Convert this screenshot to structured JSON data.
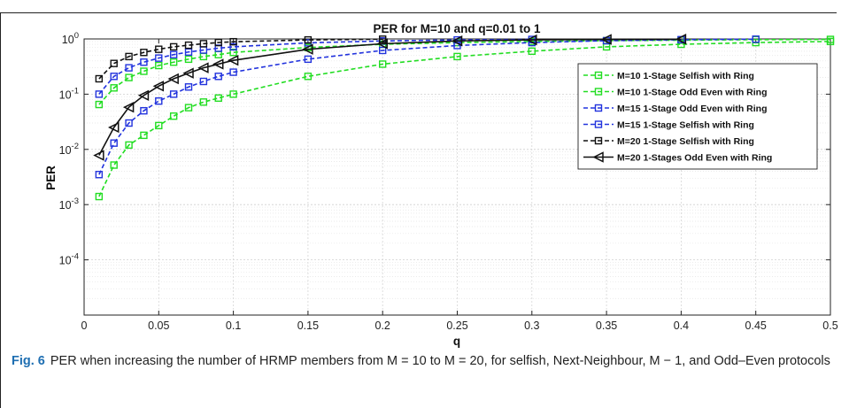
{
  "caption": {
    "label": "Fig. 6",
    "text": "PER when increasing the number of HRMP members from M = 10 to M = 20, for selfish, Next-Neighbour, M − 1, and Odd–Even protocols"
  },
  "chart_data": {
    "type": "line",
    "title": "PER  for M=10 and q=0.01 to 1",
    "xlabel": "q",
    "ylabel": "PER",
    "xlim": [
      0,
      0.5
    ],
    "ylim": [
      1e-05,
      1
    ],
    "yscale": "log",
    "grid": true,
    "legend_position": "right",
    "x_ticks": [
      "0",
      "0.05",
      "0.1",
      "0.15",
      "0.2",
      "0.25",
      "0.3",
      "0.35",
      "0.4",
      "0.45",
      "0.5"
    ],
    "y_ticks": [
      {
        "base": "10",
        "exp": "0"
      },
      {
        "base": "10",
        "exp": "-1"
      },
      {
        "base": "10",
        "exp": "-2"
      },
      {
        "base": "10",
        "exp": "-3"
      },
      {
        "base": "10",
        "exp": "-4"
      }
    ],
    "series": [
      {
        "name": "M=10 1-Stage Selfish with Ring",
        "color": "#22dd22",
        "dash": true,
        "marker": "square",
        "x": [
          0.01,
          0.02,
          0.03,
          0.04,
          0.05,
          0.06,
          0.07,
          0.08,
          0.09,
          0.1,
          0.15,
          0.2,
          0.25,
          0.3,
          0.35,
          0.4,
          0.45,
          0.5
        ],
        "y": [
          0.065,
          0.13,
          0.2,
          0.26,
          0.33,
          0.38,
          0.43,
          0.48,
          0.52,
          0.57,
          0.7,
          0.8,
          0.86,
          0.9,
          0.93,
          0.95,
          0.97,
          0.98
        ]
      },
      {
        "name": "M=10 1-Stage Odd Even with Ring",
        "color": "#22dd22",
        "dash": true,
        "marker": "square",
        "x": [
          0.01,
          0.02,
          0.03,
          0.04,
          0.05,
          0.06,
          0.07,
          0.08,
          0.09,
          0.1,
          0.15,
          0.2,
          0.25,
          0.3,
          0.35,
          0.4,
          0.45,
          0.5
        ],
        "y": [
          0.0014,
          0.0052,
          0.012,
          0.018,
          0.027,
          0.04,
          0.057,
          0.072,
          0.085,
          0.1,
          0.21,
          0.35,
          0.48,
          0.6,
          0.72,
          0.8,
          0.86,
          0.9
        ]
      },
      {
        "name": "M=15 1-Stage Odd Even with Ring",
        "color": "#2233dd",
        "dash": true,
        "marker": "square",
        "x": [
          0.01,
          0.02,
          0.03,
          0.04,
          0.05,
          0.06,
          0.07,
          0.08,
          0.09,
          0.1,
          0.15,
          0.2,
          0.25,
          0.3,
          0.35,
          0.4,
          0.45
        ],
        "y": [
          0.0035,
          0.013,
          0.03,
          0.05,
          0.075,
          0.1,
          0.135,
          0.17,
          0.21,
          0.25,
          0.43,
          0.62,
          0.76,
          0.86,
          0.93,
          0.97,
          0.99
        ]
      },
      {
        "name": "M=15 1-Stage Selfish with Ring",
        "color": "#2233dd",
        "dash": true,
        "marker": "square",
        "x": [
          0.01,
          0.02,
          0.03,
          0.04,
          0.05,
          0.06,
          0.07,
          0.08,
          0.09,
          0.1,
          0.15,
          0.2,
          0.25,
          0.3
        ],
        "y": [
          0.1,
          0.21,
          0.3,
          0.38,
          0.45,
          0.52,
          0.58,
          0.63,
          0.68,
          0.72,
          0.85,
          0.92,
          0.96,
          0.98
        ]
      },
      {
        "name": "M=20 1-Stage Selfish with Ring",
        "color": "#111111",
        "dash": true,
        "marker": "square",
        "x": [
          0.01,
          0.02,
          0.03,
          0.04,
          0.05,
          0.06,
          0.07,
          0.08,
          0.09,
          0.1,
          0.15,
          0.2
        ],
        "y": [
          0.19,
          0.36,
          0.48,
          0.57,
          0.65,
          0.72,
          0.77,
          0.82,
          0.86,
          0.89,
          0.96,
          0.99
        ]
      },
      {
        "name": "M=20 1-Stages Odd Even with Ring",
        "color": "#111111",
        "dash": false,
        "marker": "triangle-left",
        "x": [
          0.01,
          0.02,
          0.03,
          0.04,
          0.05,
          0.06,
          0.07,
          0.08,
          0.09,
          0.1,
          0.15,
          0.2,
          0.25,
          0.3,
          0.35,
          0.4
        ],
        "y": [
          0.0078,
          0.025,
          0.058,
          0.095,
          0.14,
          0.19,
          0.24,
          0.3,
          0.35,
          0.41,
          0.65,
          0.82,
          0.92,
          0.96,
          0.98,
          0.99
        ]
      }
    ]
  }
}
